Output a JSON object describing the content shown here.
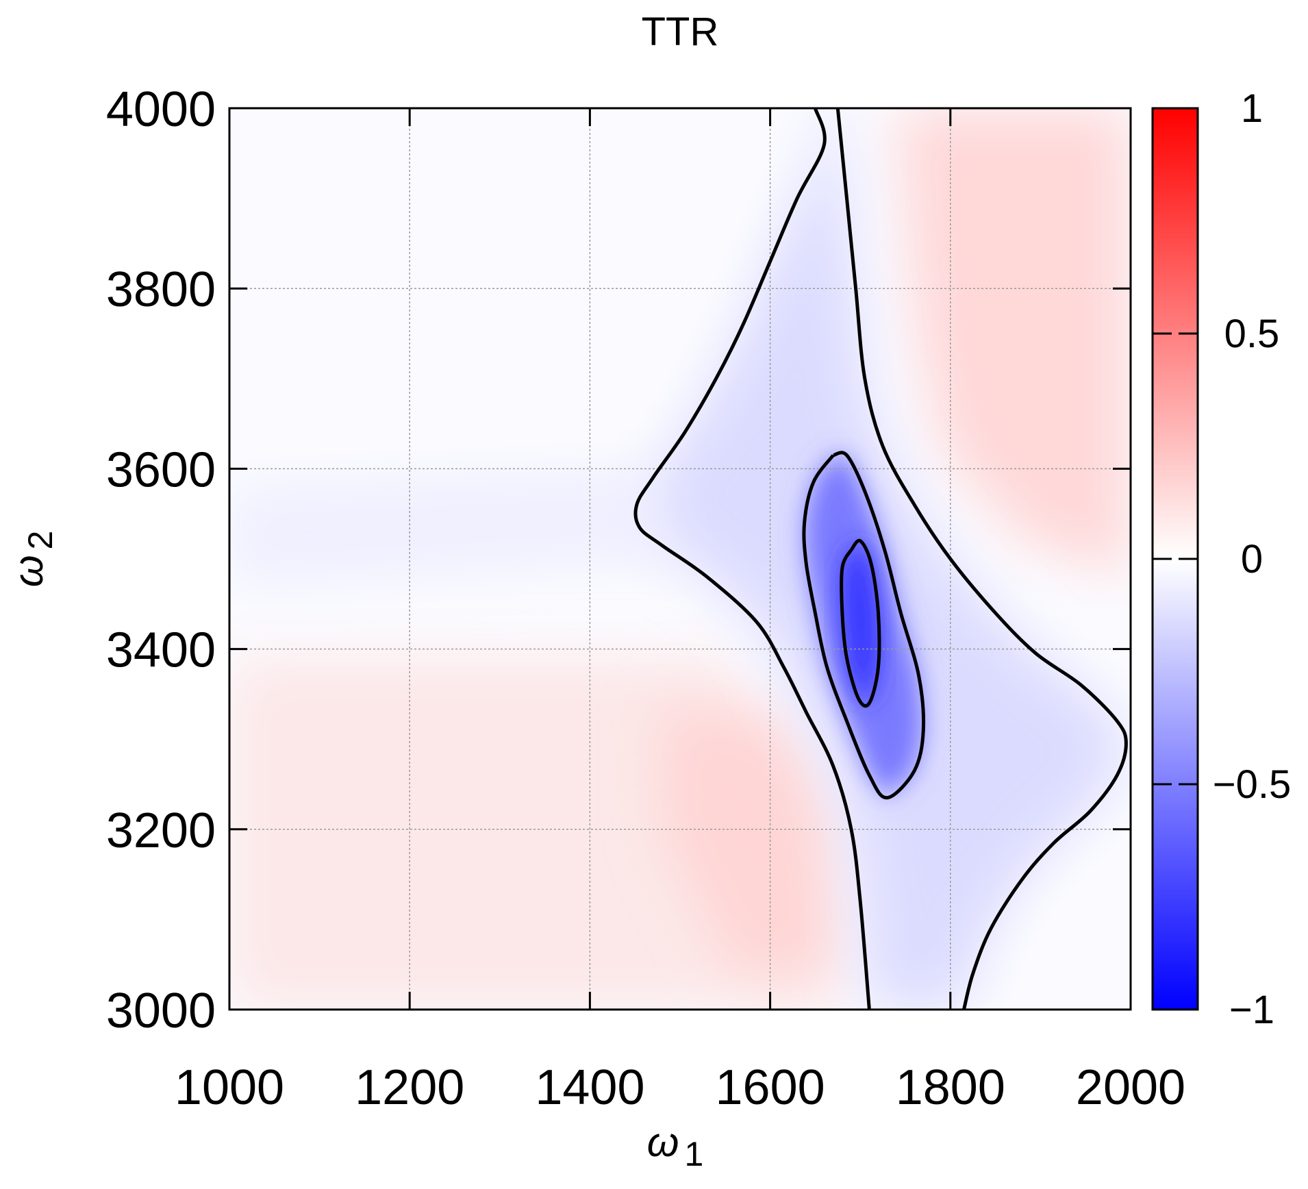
{
  "chart_data": {
    "type": "heatmap",
    "title": "TTR",
    "xlabel": "ω",
    "xlabel_sub": "1",
    "ylabel": "ω",
    "ylabel_sub": "2",
    "xlim": [
      1000,
      2000
    ],
    "ylim": [
      3000,
      4000
    ],
    "x_ticks": [
      1000,
      1200,
      1400,
      1600,
      1800,
      2000
    ],
    "y_ticks": [
      3000,
      3200,
      3400,
      3600,
      3800,
      4000
    ],
    "grid": true,
    "colorbar": {
      "range": [
        -1,
        1
      ],
      "ticks": [
        -1,
        -0.5,
        0,
        0.5,
        1
      ],
      "tick_labels": [
        "−1",
        "−0.5",
        "0",
        "0.5",
        "1"
      ],
      "colors": {
        "negative": "#0000ff",
        "zero": "#ffffff",
        "positive": "#ff0000"
      }
    },
    "contours": [
      {
        "name": "outer",
        "points": [
          [
            1650,
            4000
          ],
          [
            1660,
            3960
          ],
          [
            1630,
            3900
          ],
          [
            1600,
            3830
          ],
          [
            1570,
            3760
          ],
          [
            1540,
            3700
          ],
          [
            1505,
            3640
          ],
          [
            1470,
            3590
          ],
          [
            1452,
            3560
          ],
          [
            1455,
            3535
          ],
          [
            1480,
            3515
          ],
          [
            1530,
            3480
          ],
          [
            1585,
            3430
          ],
          [
            1615,
            3380
          ],
          [
            1640,
            3330
          ],
          [
            1670,
            3270
          ],
          [
            1690,
            3200
          ],
          [
            1700,
            3120
          ],
          [
            1710,
            3000
          ]
        ]
      },
      {
        "name": "outer-right",
        "points": [
          [
            1675,
            4000
          ],
          [
            1685,
            3900
          ],
          [
            1695,
            3800
          ],
          [
            1705,
            3700
          ],
          [
            1725,
            3625
          ],
          [
            1760,
            3560
          ],
          [
            1800,
            3500
          ],
          [
            1850,
            3440
          ],
          [
            1895,
            3395
          ],
          [
            1945,
            3360
          ],
          [
            1985,
            3320
          ],
          [
            1995,
            3295
          ],
          [
            1985,
            3260
          ],
          [
            1955,
            3220
          ],
          [
            1915,
            3185
          ],
          [
            1880,
            3145
          ],
          [
            1845,
            3090
          ],
          [
            1825,
            3040
          ],
          [
            1815,
            3000
          ]
        ]
      },
      {
        "name": "middle",
        "points": [
          [
            1670,
            3615
          ],
          [
            1648,
            3585
          ],
          [
            1638,
            3540
          ],
          [
            1640,
            3495
          ],
          [
            1650,
            3440
          ],
          [
            1663,
            3380
          ],
          [
            1685,
            3320
          ],
          [
            1710,
            3260
          ],
          [
            1730,
            3235
          ],
          [
            1760,
            3265
          ],
          [
            1770,
            3310
          ],
          [
            1765,
            3370
          ],
          [
            1745,
            3440
          ],
          [
            1727,
            3510
          ],
          [
            1705,
            3575
          ],
          [
            1685,
            3615
          ],
          [
            1670,
            3615
          ]
        ]
      },
      {
        "name": "inner",
        "points": [
          [
            1690,
            3510
          ],
          [
            1700,
            3520
          ],
          [
            1712,
            3495
          ],
          [
            1720,
            3440
          ],
          [
            1720,
            3380
          ],
          [
            1710,
            3340
          ],
          [
            1698,
            3345
          ],
          [
            1685,
            3390
          ],
          [
            1680,
            3440
          ],
          [
            1680,
            3490
          ],
          [
            1690,
            3510
          ]
        ]
      }
    ]
  }
}
